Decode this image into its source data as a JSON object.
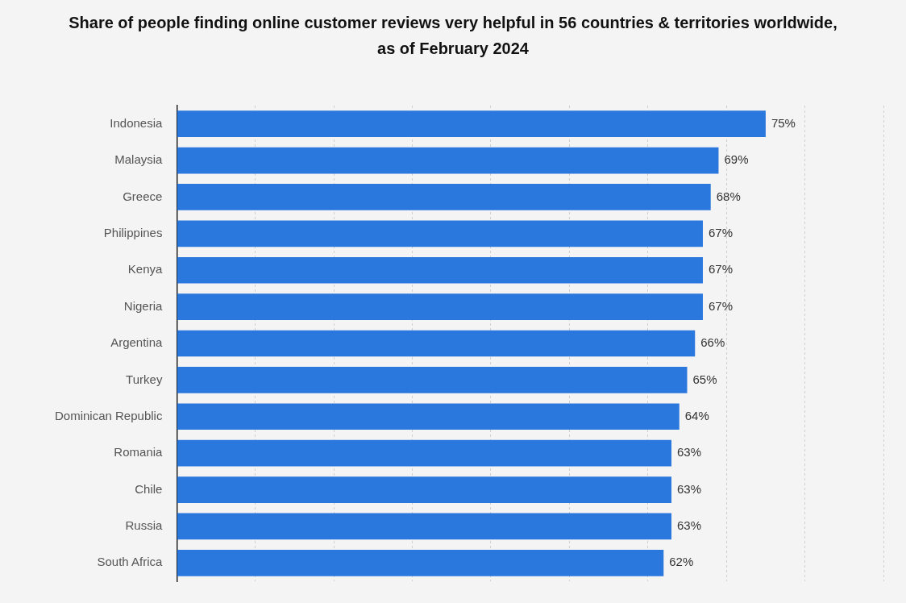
{
  "chart_data": {
    "type": "bar",
    "orientation": "horizontal",
    "title": "Share of people finding online customer reviews very helpful in 56 countries & territories worldwide, as of February 2024",
    "categories": [
      "Indonesia",
      "Malaysia",
      "Greece",
      "Philippines",
      "Kenya",
      "Nigeria",
      "Argentina",
      "Turkey",
      "Dominican Republic",
      "Romania",
      "Chile",
      "Russia",
      "South Africa"
    ],
    "values": [
      75,
      69,
      68,
      67,
      67,
      67,
      66,
      65,
      64,
      63,
      63,
      63,
      62
    ],
    "value_labels": [
      "75%",
      "69%",
      "68%",
      "67%",
      "67%",
      "67%",
      "66%",
      "65%",
      "64%",
      "63%",
      "63%",
      "63%",
      "62%"
    ],
    "color": "#2a77de",
    "xlim": [
      0,
      90
    ],
    "xticks": [
      {
        "value": 0,
        "label": null
      },
      {
        "value": 10,
        "label": null
      },
      {
        "value": 20,
        "label": null
      },
      {
        "value": 30,
        "label": null
      },
      {
        "value": 40,
        "label": null
      },
      {
        "value": 50,
        "label": null
      },
      {
        "value": 60,
        "label": null
      },
      {
        "value": 70,
        "label": null
      },
      {
        "value": 80,
        "label": null
      },
      {
        "value": 90,
        "label": null
      }
    ],
    "tick_labels": "y",
    "grid": "x",
    "legend": false
  }
}
